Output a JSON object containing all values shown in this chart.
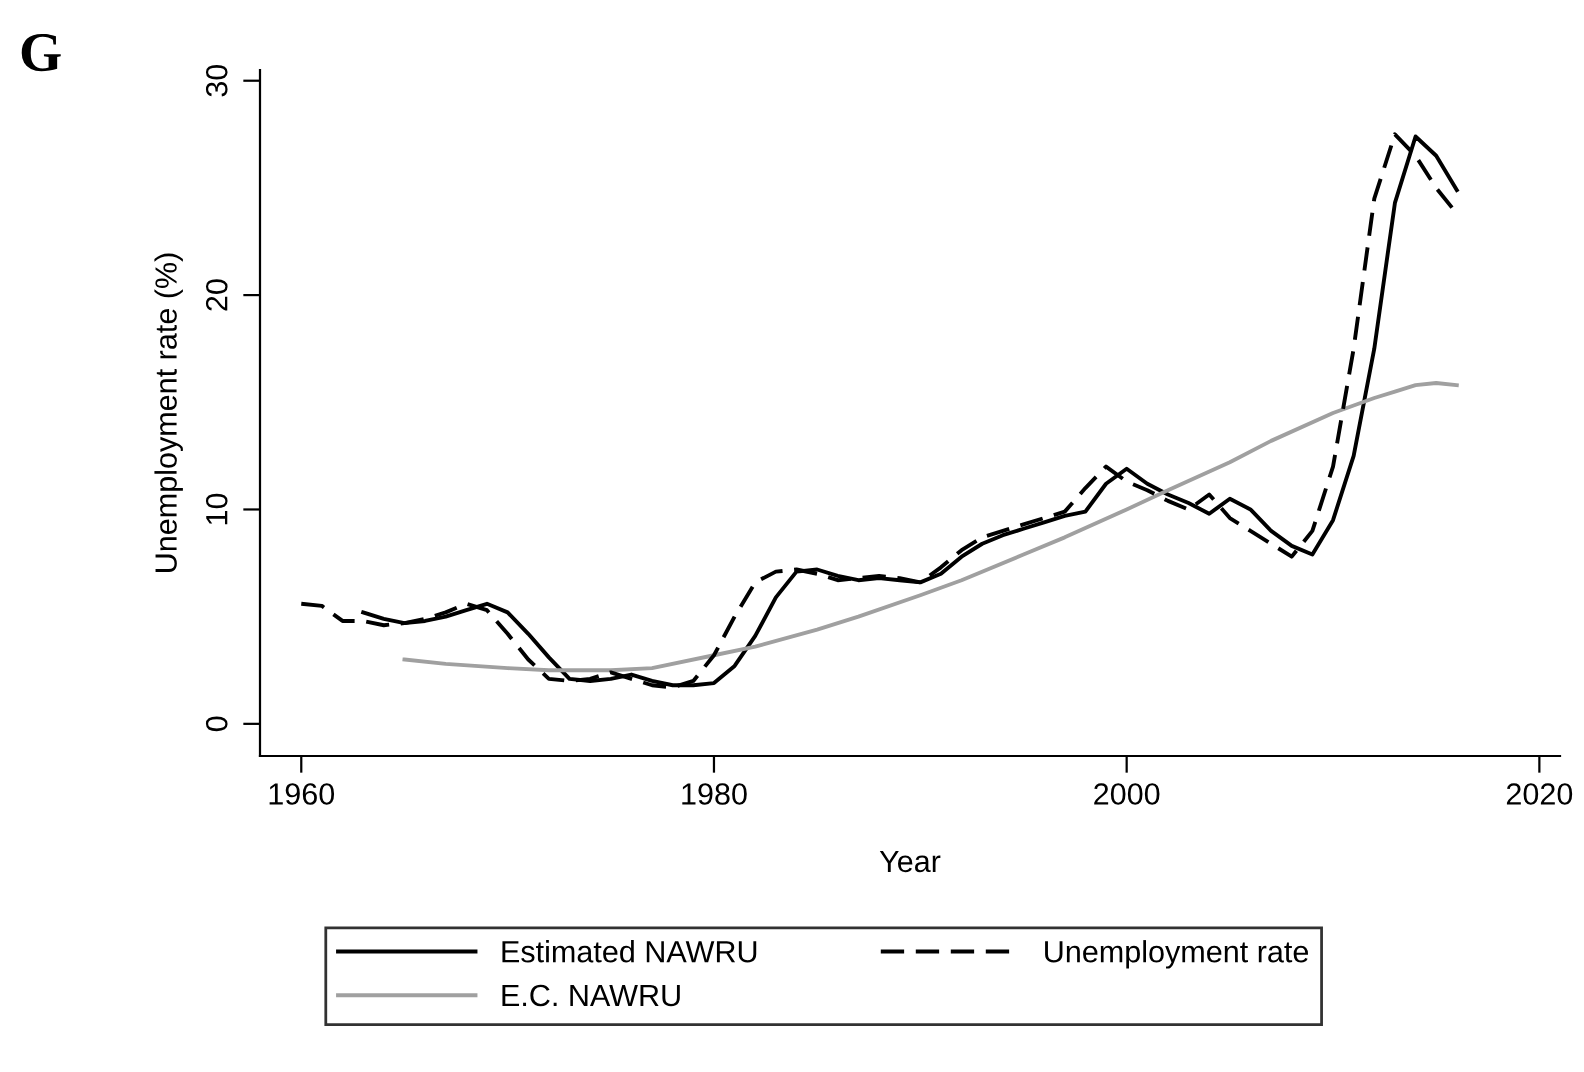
{
  "chart_data": {
    "type": "line",
    "xlabel": "Year",
    "ylabel": "Unemployment rate (%)",
    "annotations": [
      "G"
    ],
    "xlim": [
      1958,
      2021
    ],
    "xticks": [
      1960,
      1980,
      2000,
      2020
    ],
    "ylim": [
      -1.5,
      30.5
    ],
    "yticks": [
      0,
      10,
      20,
      30
    ],
    "grid": false,
    "legend": "bottom",
    "series": [
      {
        "name": "Estimated NAWRU",
        "color": "#000000",
        "line_style": "solid",
        "x": [
          1963,
          1964,
          1965,
          1966,
          1967,
          1968,
          1969,
          1970,
          1971,
          1972,
          1973,
          1974,
          1975,
          1976,
          1977,
          1978,
          1979,
          1980,
          1981,
          1982,
          1983,
          1984,
          1985,
          1986,
          1987,
          1988,
          1989,
          1990,
          1991,
          1992,
          1993,
          1994,
          1995,
          1996,
          1997,
          1998,
          1999,
          2000,
          2001,
          2002,
          2003,
          2004,
          2005,
          2006,
          2007,
          2008,
          2009,
          2010,
          2011,
          2012,
          2013,
          2014,
          2015,
          2016
        ],
        "values": [
          5.2,
          4.9,
          4.7,
          4.8,
          5.0,
          5.3,
          5.6,
          5.2,
          4.2,
          3.1,
          2.1,
          2.0,
          2.1,
          2.3,
          2.0,
          1.8,
          1.8,
          1.9,
          2.7,
          4.1,
          5.9,
          7.1,
          7.2,
          6.9,
          6.7,
          6.8,
          6.7,
          6.6,
          7.0,
          7.8,
          8.4,
          8.8,
          9.1,
          9.4,
          9.7,
          9.9,
          11.2,
          11.9,
          11.2,
          10.7,
          10.3,
          9.8,
          10.5,
          10.0,
          9.0,
          8.3,
          7.9,
          9.5,
          12.5,
          17.5,
          24.3,
          27.4,
          26.5,
          24.9
        ]
      },
      {
        "name": "E.C. NAWRU",
        "color": "#a0a0a0",
        "line_style": "solid",
        "x": [
          1965,
          1967,
          1970,
          1972,
          1975,
          1977,
          1980,
          1982,
          1985,
          1987,
          1990,
          1992,
          1995,
          1997,
          2000,
          2002,
          2005,
          2007,
          2010,
          2012,
          2013,
          2014,
          2015,
          2016
        ],
        "values": [
          3.0,
          2.8,
          2.6,
          2.5,
          2.5,
          2.6,
          3.2,
          3.6,
          4.4,
          5.0,
          6.0,
          6.7,
          7.9,
          8.7,
          10.0,
          10.9,
          12.2,
          13.2,
          14.5,
          15.2,
          15.5,
          15.8,
          15.9,
          15.8
        ]
      },
      {
        "name": "Unemployment rate",
        "color": "#000000",
        "line_style": "dashed",
        "x": [
          1960,
          1961,
          1962,
          1963,
          1964,
          1965,
          1966,
          1967,
          1968,
          1969,
          1970,
          1971,
          1972,
          1973,
          1974,
          1975,
          1976,
          1977,
          1978,
          1979,
          1980,
          1981,
          1982,
          1983,
          1984,
          1985,
          1986,
          1987,
          1988,
          1989,
          1990,
          1991,
          1992,
          1993,
          1994,
          1995,
          1996,
          1997,
          1998,
          1999,
          2000,
          2001,
          2002,
          2003,
          2004,
          2005,
          2006,
          2007,
          2008,
          2009,
          2010,
          2011,
          2012,
          2013,
          2014,
          2015,
          2016
        ],
        "values": [
          5.6,
          5.5,
          4.8,
          4.8,
          4.6,
          4.7,
          4.9,
          5.2,
          5.6,
          5.3,
          4.2,
          3.0,
          2.1,
          2.0,
          2.1,
          2.4,
          2.1,
          1.8,
          1.7,
          2.0,
          3.2,
          5.0,
          6.6,
          7.1,
          7.2,
          7.0,
          6.7,
          6.8,
          6.9,
          6.8,
          6.6,
          7.3,
          8.1,
          8.7,
          9.0,
          9.3,
          9.6,
          9.9,
          11.0,
          12.0,
          11.3,
          10.9,
          10.4,
          10.0,
          10.7,
          9.6,
          9.0,
          8.4,
          7.8,
          9.0,
          12.0,
          17.5,
          24.5,
          27.5,
          26.5,
          25.0,
          23.8
        ]
      }
    ]
  }
}
